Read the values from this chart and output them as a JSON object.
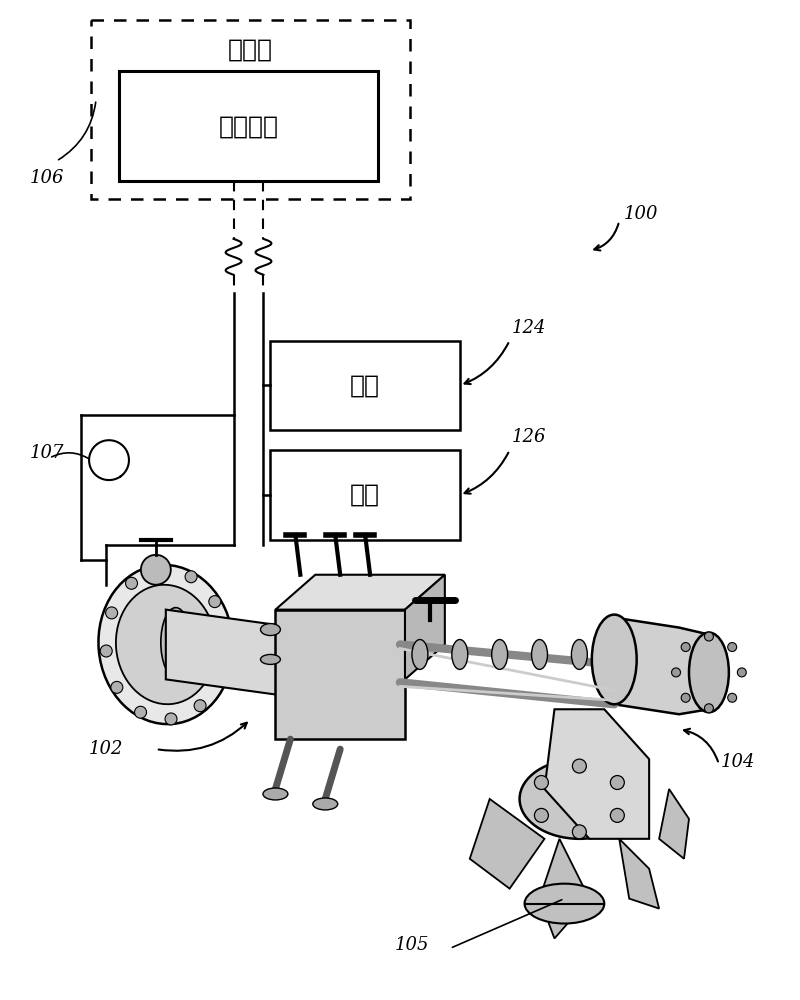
{
  "bg_color": "#ffffff",
  "line_color": "#000000",
  "gray_light": "#d0d0d0",
  "gray_mid": "#a0a0a0",
  "gray_dark": "#606060",
  "box_ctrl_room_label": "控制室",
  "box_ctrl_unit_label": "控制单元",
  "box_power_label": "电源",
  "box_device_label": "设备",
  "label_100": "100",
  "label_102": "102",
  "label_104": "104",
  "label_105": "105",
  "label_106": "106",
  "label_107": "107",
  "label_124": "124",
  "label_126": "126",
  "font_size_zh": 18,
  "font_size_label": 13
}
